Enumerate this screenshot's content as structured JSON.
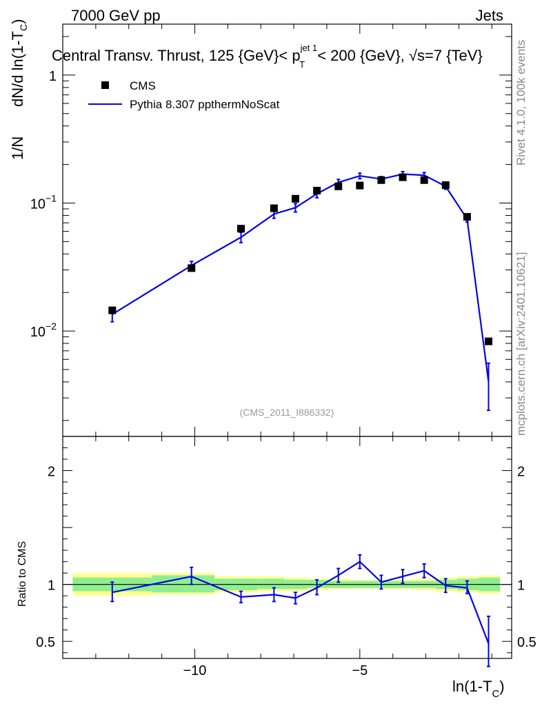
{
  "header": {
    "left": "7000 GeV pp",
    "right": "Jets"
  },
  "side": {
    "rivet": "Rivet 4.1.0,  100k events",
    "mcplots": "mcplots.cern.ch [arXiv:2401.10621]"
  },
  "reference": "(CMS_2011_I886332)",
  "colors": {
    "mc": "#0000ee",
    "band_inner": "#90ee90",
    "band_outer": "#ffff90",
    "data": "#000000"
  },
  "chart_data": {
    "type": "line",
    "title_main": "Central Transv. Thrust, 125 {GeV}< p",
    "title_sup": "jet 1",
    "title_sub": "T",
    "title_tail": " < 200 {GeV}, √s=7 {TeV}",
    "xlabel_main": "ln(1-T",
    "xlabel_sub": "C",
    "xlabel_close": ")",
    "ylabel_prefix": "1/N",
    "ylabel_main": "dN/d ln(1-T",
    "ylabel_sub": "C",
    "ylabel_close": ")",
    "ratio_ylabel": "Ratio to CMS",
    "xlim": [
      -14.0,
      -0.4
    ],
    "ylim_log": [
      0.0015,
      2.5
    ],
    "ratio_ylim": [
      0.35,
      2.3
    ],
    "x_ticks": [
      {
        "value": -10,
        "label": "−10"
      },
      {
        "value": -5,
        "label": "−5"
      }
    ],
    "y_ticks": [
      {
        "value": 1,
        "base": "1",
        "exp": ""
      },
      {
        "value": 0.1,
        "base": "10",
        "exp": "−1"
      },
      {
        "value": 0.01,
        "base": "10",
        "exp": "−2"
      }
    ],
    "ratio_ticks": [
      {
        "value": 2,
        "label": "2"
      },
      {
        "value": 1,
        "label": "1"
      },
      {
        "value": 0.5,
        "label": "0.5"
      }
    ],
    "legend": {
      "data": "CMS",
      "mc": "Pythia 8.307 ppthermNoScat",
      "placement": "top-left"
    },
    "x": [
      -12.5,
      -10.1,
      -8.6,
      -7.6,
      -6.95,
      -6.3,
      -5.65,
      -5.0,
      -4.35,
      -3.7,
      -3.05,
      -2.4,
      -1.75,
      -1.1
    ],
    "series": [
      {
        "name": "CMS",
        "values": [
          0.0145,
          0.031,
          0.063,
          0.091,
          0.108,
          0.125,
          0.135,
          0.137,
          0.151,
          0.159,
          0.151,
          0.138,
          0.078,
          0.0083
        ]
      },
      {
        "name": "Pythia 8.307 ppthermNoScat",
        "values": [
          0.0135,
          0.0325,
          0.054,
          0.082,
          0.092,
          0.118,
          0.145,
          0.163,
          0.154,
          0.168,
          0.165,
          0.135,
          0.075,
          0.004
        ],
        "err_low": [
          0.0118,
          0.0295,
          0.049,
          0.076,
          0.085,
          0.11,
          0.137,
          0.155,
          0.147,
          0.16,
          0.157,
          0.128,
          0.071,
          0.0024
        ],
        "err_high": [
          0.0152,
          0.035,
          0.059,
          0.088,
          0.099,
          0.126,
          0.153,
          0.171,
          0.161,
          0.176,
          0.173,
          0.142,
          0.079,
          0.0056
        ]
      }
    ],
    "ratio": {
      "values": [
        0.93,
        1.07,
        0.89,
        0.91,
        0.88,
        0.97,
        1.08,
        1.2,
        1.02,
        1.07,
        1.12,
        0.99,
        0.97,
        0.48
      ],
      "err_low": [
        0.85,
        1.0,
        0.84,
        0.85,
        0.83,
        0.91,
        1.02,
        1.14,
        0.96,
        1.01,
        1.06,
        0.93,
        0.92,
        0.28
      ],
      "err_high": [
        1.02,
        1.15,
        0.94,
        0.97,
        0.93,
        1.04,
        1.14,
        1.26,
        1.08,
        1.13,
        1.18,
        1.05,
        1.03,
        0.72
      ],
      "band_bins": [
        {
          "lo": -13.7,
          "hi": -11.3,
          "inner": [
            0.94,
            1.06
          ],
          "outer": [
            0.9,
            1.1
          ]
        },
        {
          "lo": -11.3,
          "hi": -9.4,
          "inner": [
            0.93,
            1.08
          ],
          "outer": [
            0.91,
            1.1
          ]
        },
        {
          "lo": -9.4,
          "hi": -8.1,
          "inner": [
            0.95,
            1.05
          ],
          "outer": [
            0.93,
            1.07
          ]
        },
        {
          "lo": -8.1,
          "hi": -7.3,
          "inner": [
            0.96,
            1.05
          ],
          "outer": [
            0.94,
            1.07
          ]
        },
        {
          "lo": -7.3,
          "hi": -6.6,
          "inner": [
            0.96,
            1.04
          ],
          "outer": [
            0.94,
            1.06
          ]
        },
        {
          "lo": -6.6,
          "hi": -5.95,
          "inner": [
            0.97,
            1.04
          ],
          "outer": [
            0.95,
            1.05
          ]
        },
        {
          "lo": -5.95,
          "hi": -5.3,
          "inner": [
            0.97,
            1.03
          ],
          "outer": [
            0.96,
            1.05
          ]
        },
        {
          "lo": -5.3,
          "hi": -4.65,
          "inner": [
            0.97,
            1.03
          ],
          "outer": [
            0.96,
            1.04
          ]
        },
        {
          "lo": -4.65,
          "hi": -4.0,
          "inner": [
            0.97,
            1.03
          ],
          "outer": [
            0.96,
            1.04
          ]
        },
        {
          "lo": -4.0,
          "hi": -3.35,
          "inner": [
            0.97,
            1.03
          ],
          "outer": [
            0.96,
            1.04
          ]
        },
        {
          "lo": -3.35,
          "hi": -2.7,
          "inner": [
            0.97,
            1.03
          ],
          "outer": [
            0.95,
            1.05
          ]
        },
        {
          "lo": -2.7,
          "hi": -2.05,
          "inner": [
            0.96,
            1.04
          ],
          "outer": [
            0.94,
            1.06
          ]
        },
        {
          "lo": -2.05,
          "hi": -1.4,
          "inner": [
            0.95,
            1.05
          ],
          "outer": [
            0.93,
            1.07
          ]
        },
        {
          "lo": -1.4,
          "hi": -0.75,
          "inner": [
            0.94,
            1.06
          ],
          "outer": [
            0.92,
            1.08
          ]
        }
      ]
    }
  }
}
